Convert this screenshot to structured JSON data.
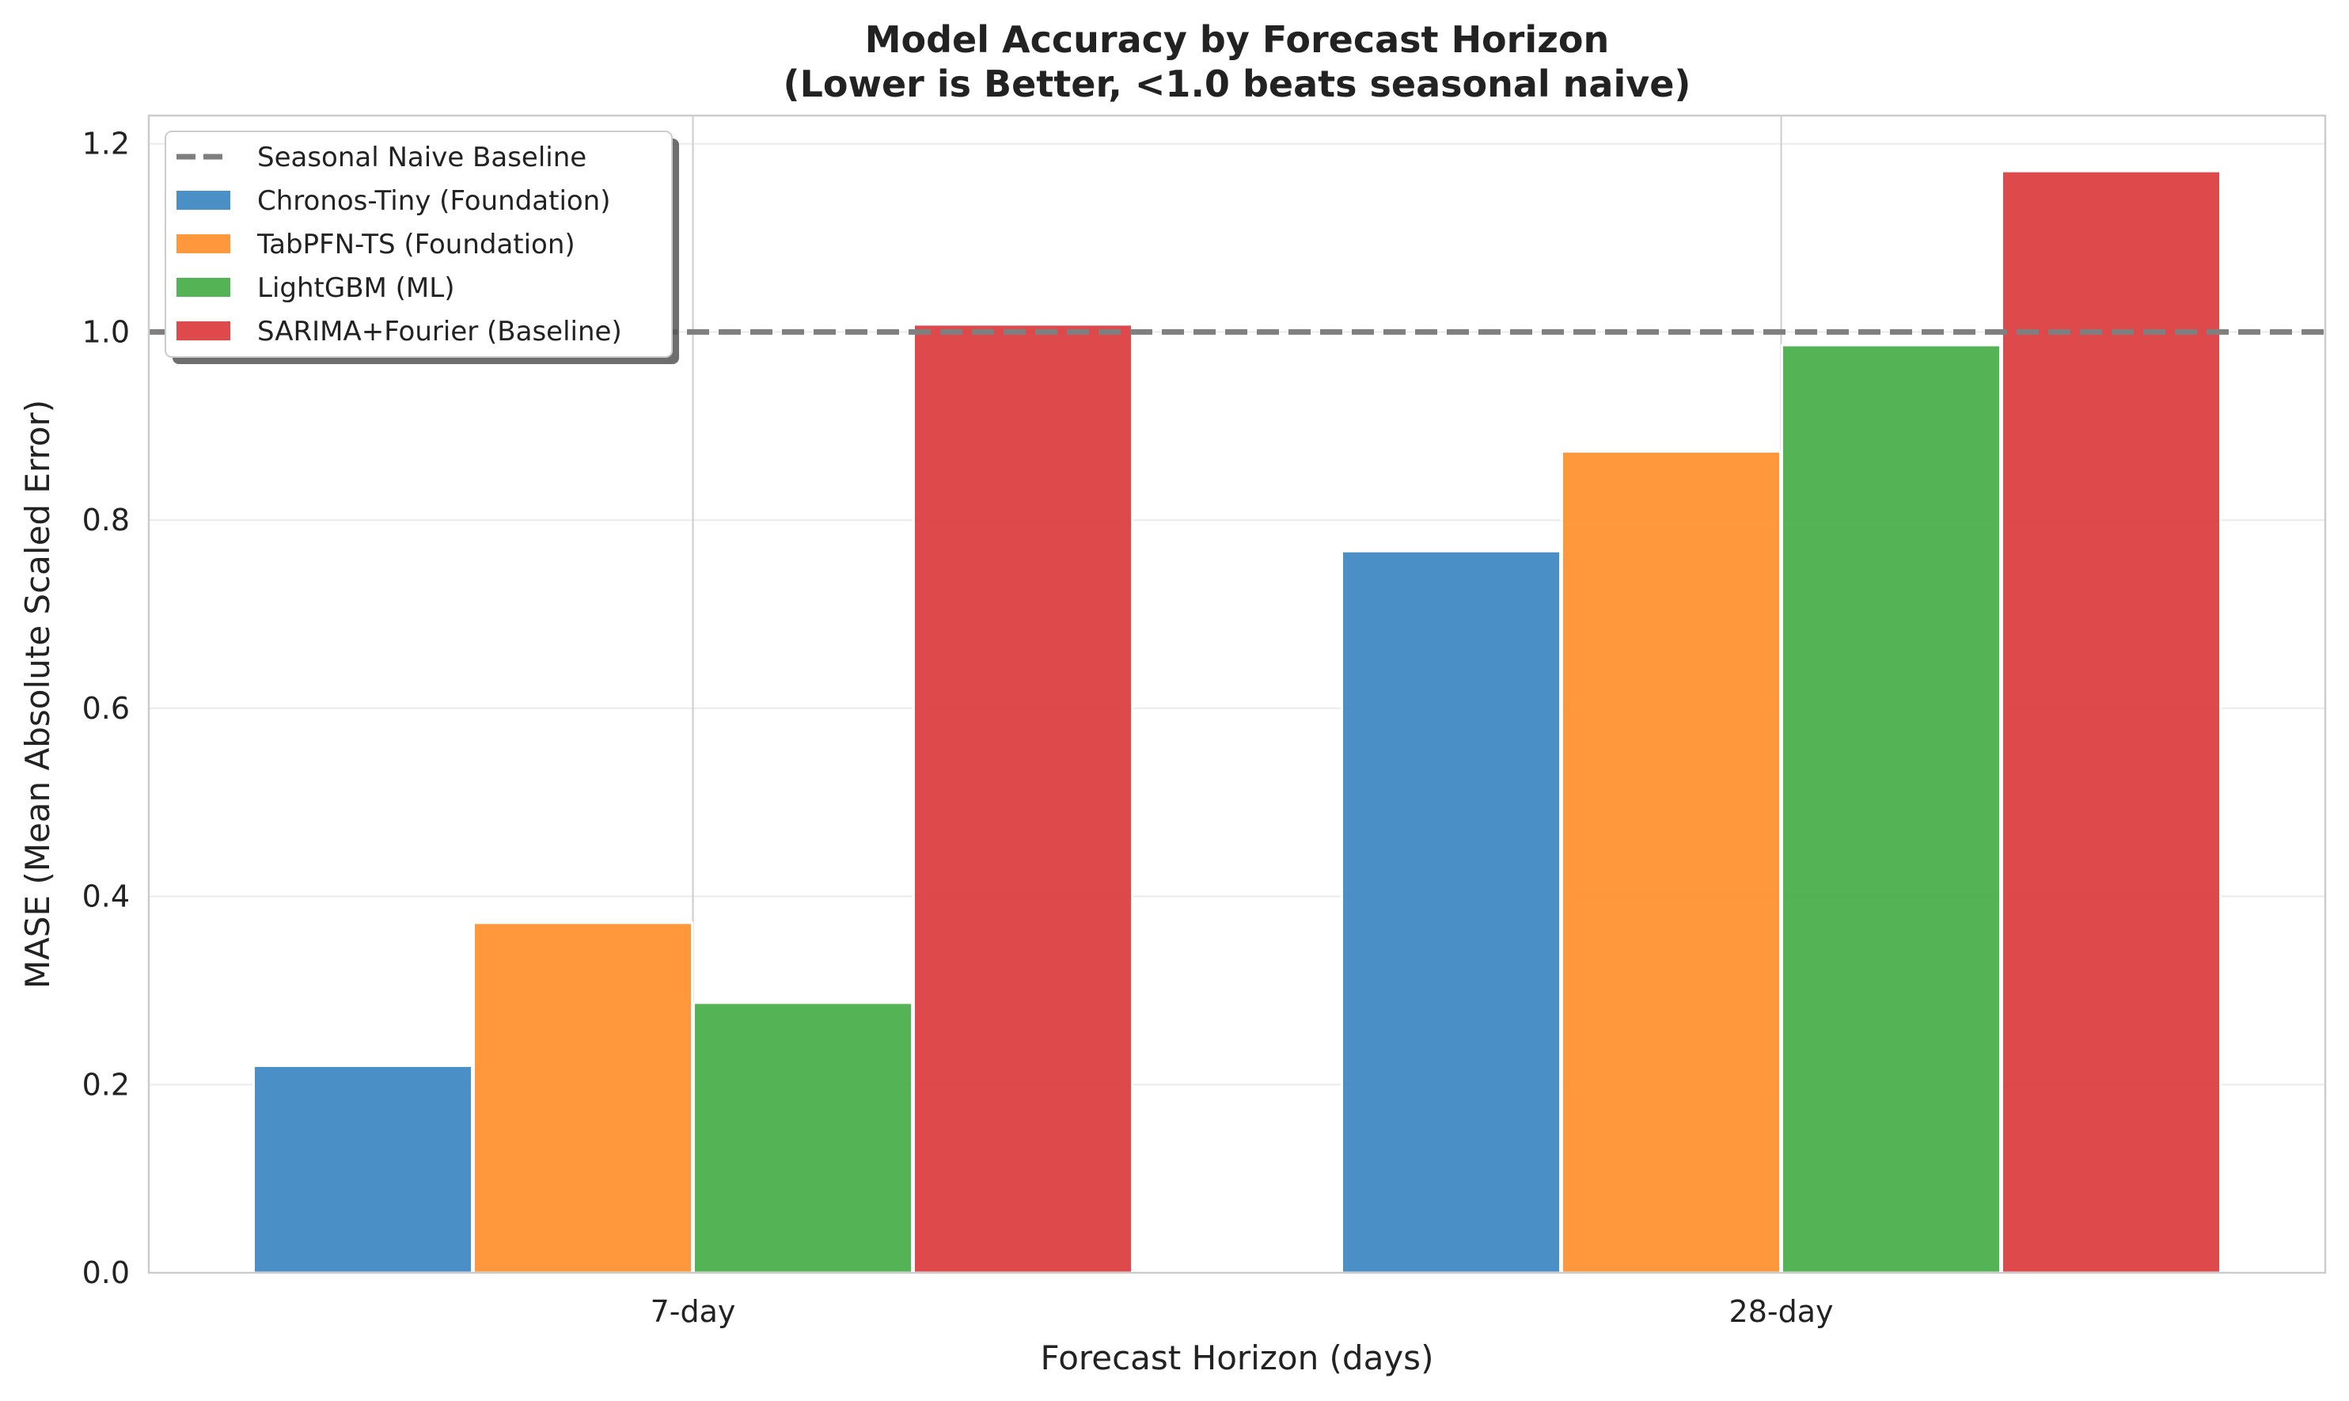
{
  "chart_data": {
    "type": "bar",
    "title": "Model Accuracy by Forecast Horizon",
    "subtitle": "(Lower is Better, <1.0 beats seasonal naive)",
    "xlabel": "Forecast Horizon (days)",
    "ylabel": "MASE (Mean Absolute Scaled Error)",
    "categories": [
      "7-day",
      "28-day"
    ],
    "series": [
      {
        "name": "Chronos-Tiny (Foundation)",
        "values": [
          0.22,
          0.767
        ],
        "color": "#3b86c0"
      },
      {
        "name": "TabPFN-TS (Foundation)",
        "values": [
          0.372,
          0.873
        ],
        "color": "#ff8e2b"
      },
      {
        "name": "LightGBM (ML)",
        "values": [
          0.287,
          0.986
        ],
        "color": "#44ac46"
      },
      {
        "name": "SARIMA+Fourier (Baseline)",
        "values": [
          1.008,
          1.171
        ],
        "color": "#db3a3d"
      }
    ],
    "baseline": {
      "name": "Seasonal Naive Baseline",
      "value": 1.0,
      "color": "#7f7f7f",
      "style": "dashed"
    },
    "ylim": [
      0,
      1.23
    ],
    "yticks": [
      "0.0",
      "0.2",
      "0.4",
      "0.6",
      "0.8",
      "1.0",
      "1.2"
    ],
    "grid": true,
    "legend_position": "top-left"
  }
}
